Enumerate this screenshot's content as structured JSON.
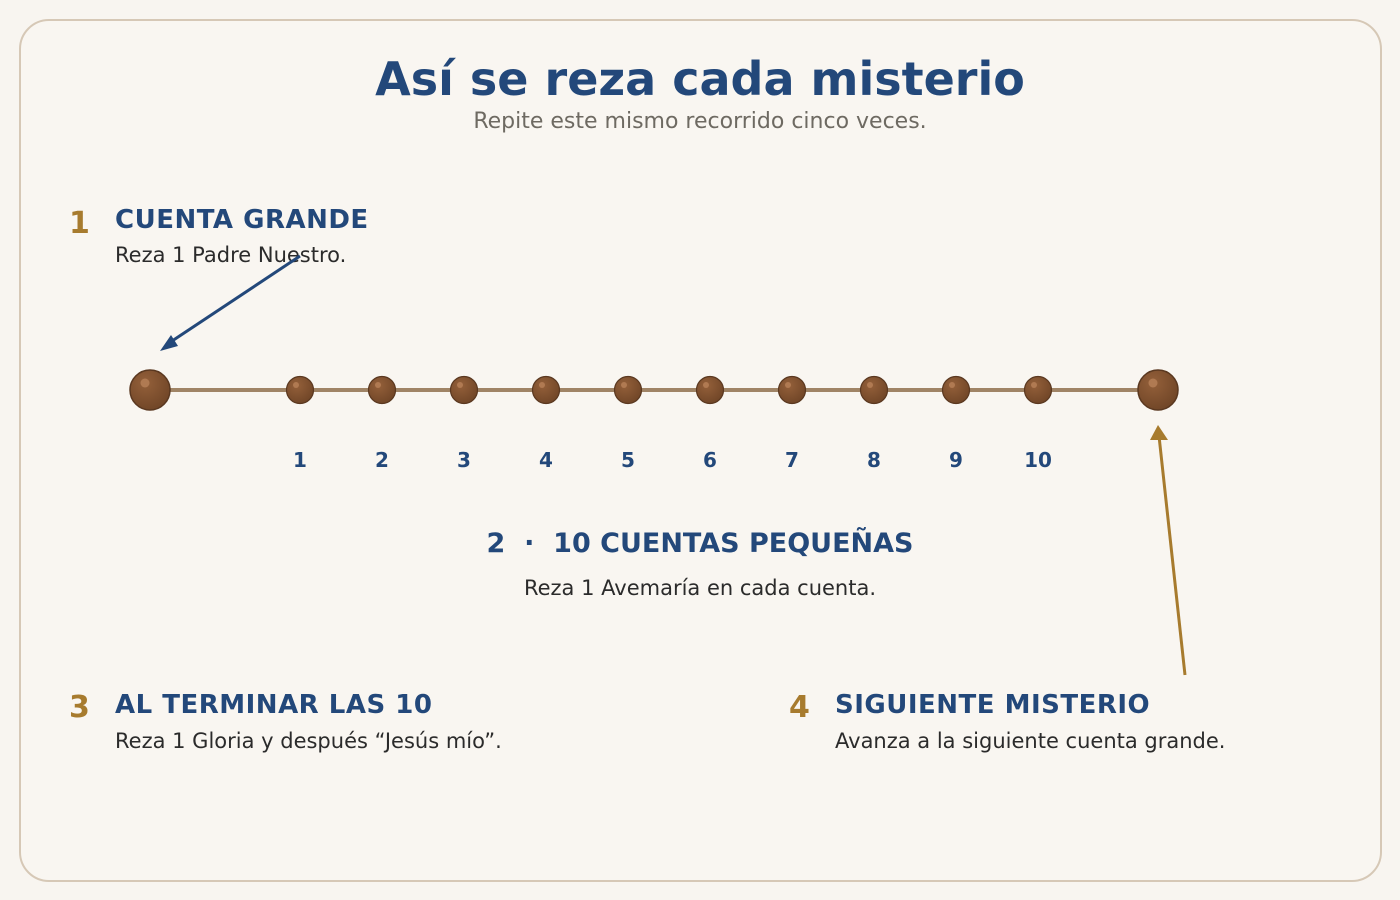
{
  "title": "Así se reza cada misterio",
  "subtitle": "Repite este mismo recorrido cinco veces.",
  "steps": [
    {
      "num": "1",
      "heading": "CUENTA GRANDE",
      "text": "Reza 1 Padre Nuestro."
    },
    {
      "num": "2",
      "heading": "10 CUENTAS PEQUEÑAS",
      "text": "Reza 1 Avemaría en cada cuenta."
    },
    {
      "num": "3",
      "heading": "AL TERMINAR LAS 10",
      "text": "Reza 1 Gloria y después “Jesús mío”."
    },
    {
      "num": "4",
      "heading": "SIGUIENTE MISTERIO",
      "text": "Avanza a la siguiente cuenta grande."
    }
  ],
  "center_heading": "2  ·  10 CUENTAS PEQUEÑAS",
  "bead_labels": [
    "1",
    "2",
    "3",
    "4",
    "5",
    "6",
    "7",
    "8",
    "9",
    "10"
  ],
  "colors": {
    "navy": "#23487a",
    "gold": "#a77b2e",
    "bead": "#7a4e2d",
    "string": "#a08466"
  }
}
